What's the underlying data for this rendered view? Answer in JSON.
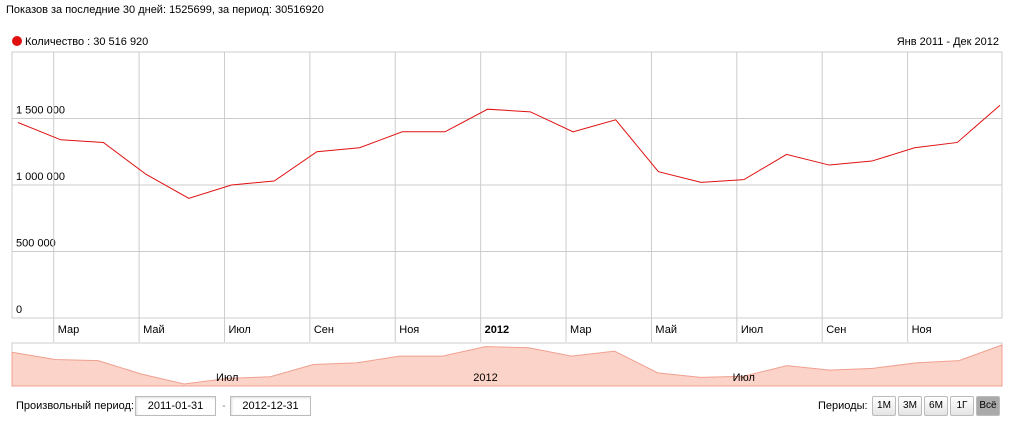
{
  "summary": "Показов за последние 30 дней: 1525699, за период: 30516920",
  "range_label": "Янв 2011 - Дек 2012",
  "controls": {
    "custom_period": "Произвольный период:",
    "from": "2011-01-31",
    "separator": "-",
    "to": "2012-12-31",
    "periods_label": "Периоды:",
    "buttons": [
      "1М",
      "3М",
      "6М",
      "1Г",
      "Всё"
    ],
    "active_button": 4
  },
  "chart_data": {
    "type": "line",
    "categories": [
      null,
      "Мар",
      null,
      "Май",
      null,
      "Июл",
      null,
      "Сен",
      null,
      "Ноя",
      null,
      "2012",
      null,
      "Мар",
      null,
      "Май",
      null,
      "Июл",
      null,
      "Сен",
      null,
      "Ноя",
      null,
      null
    ],
    "series": [
      {
        "name": "Количество : 30 516 920",
        "color": "#e01010",
        "values": [
          1470000,
          1340000,
          1320000,
          1080000,
          900000,
          1000000,
          1030000,
          1250000,
          1280000,
          1400000,
          1400000,
          1570000,
          1550000,
          1400000,
          1490000,
          1100000,
          1020000,
          1040000,
          1230000,
          1150000,
          1180000,
          1280000,
          1320000,
          1600000
        ]
      }
    ],
    "ylim": [
      0,
      2000000
    ],
    "yticks": [
      0,
      {
        "value": 500000,
        "label": "500 000"
      },
      {
        "value": 1000000,
        "label": "1 000 000"
      },
      {
        "value": 1500000,
        "label": "1 500 000"
      }
    ],
    "grid": true,
    "overview_labels": [
      5,
      11,
      17
    ],
    "overview_fill": "#fcd3c8",
    "overview_line": "#f0a090"
  }
}
